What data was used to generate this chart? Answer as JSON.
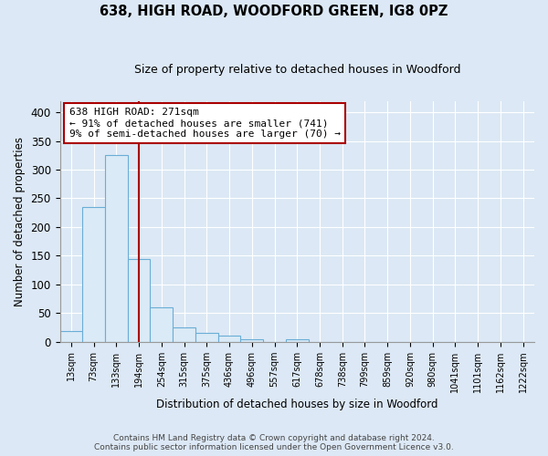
{
  "title": "638, HIGH ROAD, WOODFORD GREEN, IG8 0PZ",
  "subtitle": "Size of property relative to detached houses in Woodford",
  "xlabel": "Distribution of detached houses by size in Woodford",
  "ylabel": "Number of detached properties",
  "categories": [
    "13sqm",
    "73sqm",
    "133sqm",
    "194sqm",
    "254sqm",
    "315sqm",
    "375sqm",
    "436sqm",
    "496sqm",
    "557sqm",
    "617sqm",
    "678sqm",
    "738sqm",
    "799sqm",
    "859sqm",
    "920sqm",
    "980sqm",
    "1041sqm",
    "1101sqm",
    "1162sqm",
    "1222sqm"
  ],
  "values": [
    18,
    235,
    325,
    145,
    60,
    25,
    15,
    10,
    5,
    0,
    5,
    0,
    0,
    0,
    0,
    0,
    0,
    0,
    0,
    0,
    0
  ],
  "bar_color": "#daeaf6",
  "bar_edge_color": "#6aaed6",
  "vline_pos": 3.0,
  "vline_color": "#aa0000",
  "annotation_text": "638 HIGH ROAD: 271sqm\n← 91% of detached houses are smaller (741)\n9% of semi-detached houses are larger (70) →",
  "annotation_box_color": "#ffffff",
  "annotation_border_color": "#aa0000",
  "bg_color": "#dce8f5",
  "plot_bg_color": "#dce8f5",
  "ylim": [
    0,
    420
  ],
  "yticks": [
    0,
    50,
    100,
    150,
    200,
    250,
    300,
    350,
    400
  ],
  "footer1": "Contains HM Land Registry data © Crown copyright and database right 2024.",
  "footer2": "Contains public sector information licensed under the Open Government Licence v3.0."
}
